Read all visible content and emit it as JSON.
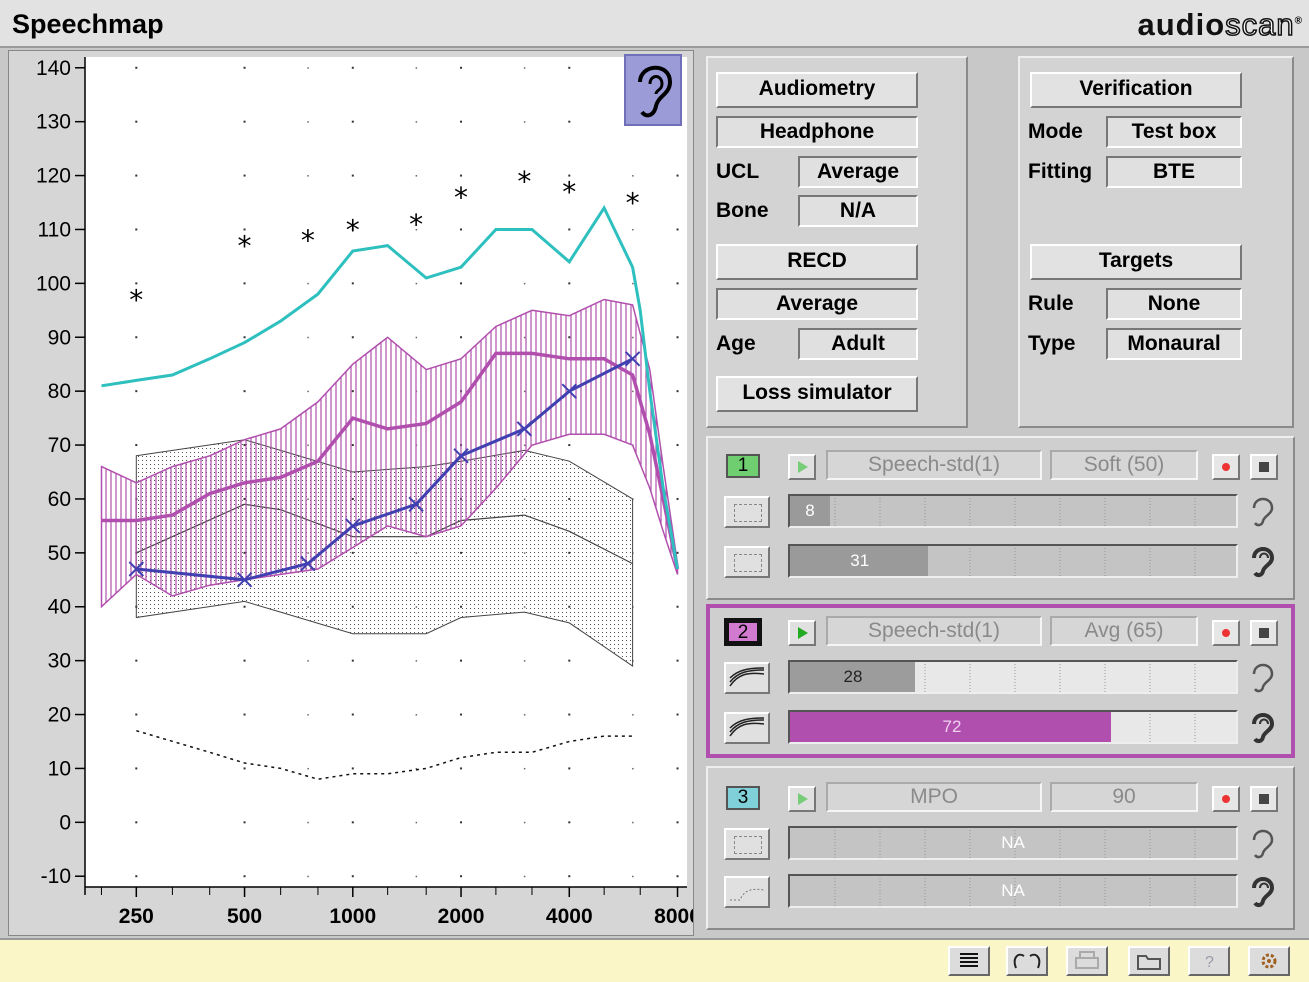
{
  "app_title": "Speechmap",
  "brand": {
    "part1": "audio",
    "part2": "scan"
  },
  "colors": {
    "accent_magenta": "#b14fae",
    "ucl_teal": "#2ebfbf",
    "aided_blue": "#4040b0",
    "status_bar": "#fbf6c8"
  },
  "chart_data": {
    "type": "line",
    "x_scale": "log",
    "xlim": [
      180,
      8500
    ],
    "ylim": [
      -12,
      142
    ],
    "x_ticks": [
      {
        "v": 250,
        "label": "250"
      },
      {
        "v": 500,
        "label": "500"
      },
      {
        "v": 1000,
        "label": "1000"
      },
      {
        "v": 2000,
        "label": "2000"
      },
      {
        "v": 4000,
        "label": "4000"
      },
      {
        "v": 8000,
        "label": "8000"
      }
    ],
    "y_ticks": [
      140,
      130,
      120,
      110,
      100,
      90,
      80,
      70,
      60,
      50,
      40,
      30,
      20,
      10,
      0,
      -10
    ],
    "grid": "dotted",
    "ucl_markers": {
      "x": [
        250,
        500,
        750,
        1000,
        1500,
        2000,
        3000,
        4000,
        6000
      ],
      "y": [
        97,
        107,
        108,
        110,
        111,
        116,
        119,
        117,
        115
      ]
    },
    "mpo_curve": {
      "x": [
        200,
        250,
        315,
        400,
        500,
        630,
        800,
        1000,
        1250,
        1600,
        2000,
        2500,
        3150,
        4000,
        5000,
        6000,
        6300,
        6700,
        7300,
        8000
      ],
      "y": [
        81,
        82,
        83,
        86,
        89,
        93,
        98,
        106,
        107,
        101,
        103,
        110,
        110,
        104,
        114,
        103,
        95,
        80,
        62,
        47
      ]
    },
    "speech_band_avg": {
      "upper": {
        "x": [
          200,
          250,
          315,
          400,
          500,
          630,
          800,
          1000,
          1250,
          1600,
          2000,
          2500,
          3150,
          4000,
          5000,
          6000,
          6700,
          7300,
          8000
        ],
        "y": [
          66,
          63,
          66,
          68,
          71,
          73,
          78,
          85,
          90,
          84,
          86,
          92,
          95,
          94,
          97,
          96,
          84,
          66,
          48
        ]
      },
      "lower": {
        "x": [
          200,
          250,
          315,
          400,
          500,
          630,
          800,
          1000,
          1250,
          1600,
          2000,
          2500,
          3150,
          4000,
          5000,
          6000,
          6700,
          7300,
          8000
        ],
        "y": [
          40,
          46,
          42,
          44,
          45,
          46,
          47,
          51,
          55,
          53,
          55,
          62,
          70,
          72,
          72,
          70,
          62,
          54,
          46
        ]
      },
      "mid": {
        "x": [
          200,
          250,
          315,
          400,
          500,
          630,
          800,
          1000,
          1250,
          1600,
          2000,
          2500,
          3150,
          4000,
          5000,
          6000,
          6700,
          7300,
          8000
        ],
        "y": [
          56,
          56,
          57,
          61,
          63,
          64,
          67,
          75,
          73,
          74,
          78,
          87,
          87,
          86,
          86,
          83,
          72,
          60,
          47
        ]
      }
    },
    "unaided_band": {
      "upper": {
        "x": [
          250,
          500,
          630,
          1000,
          1600,
          2000,
          3000,
          4000,
          6000
        ],
        "y": [
          68,
          71,
          69,
          65,
          66,
          67,
          69,
          67,
          60
        ]
      },
      "mid": {
        "x": [
          250,
          500,
          630,
          1000,
          1600,
          2000,
          3000,
          4000,
          6000
        ],
        "y": [
          50,
          59,
          58,
          53,
          53,
          56,
          57,
          54,
          48
        ]
      },
      "lower": {
        "x": [
          250,
          500,
          630,
          1000,
          1600,
          2000,
          3000,
          4000,
          6000
        ],
        "y": [
          38,
          41,
          39,
          35,
          35,
          38,
          39,
          37,
          29
        ]
      }
    },
    "aided_threshold": {
      "x": [
        250,
        500,
        750,
        1000,
        1500,
        2000,
        3000,
        4000,
        6000
      ],
      "y": [
        47,
        45,
        48,
        55,
        59,
        68,
        73,
        80,
        86
      ]
    },
    "hearing_threshold_dotted": {
      "x": [
        250,
        400,
        500,
        630,
        800,
        1000,
        1250,
        1600,
        2000,
        2500,
        3150,
        4000,
        5000,
        6000
      ],
      "y": [
        17,
        13,
        11,
        10,
        8,
        9,
        9,
        10,
        12,
        13,
        13,
        15,
        16,
        16
      ]
    }
  },
  "audiometry_panel": {
    "button": "Audiometry",
    "transducer": "Headphone",
    "ucl_label": "UCL",
    "ucl_value": "Average",
    "bone_label": "Bone",
    "bone_value": "N/A",
    "recd_button": "RECD",
    "recd_value": "Average",
    "age_label": "Age",
    "age_value": "Adult",
    "loss_sim_button": "Loss simulator"
  },
  "verification_panel": {
    "button": "Verification",
    "mode_label": "Mode",
    "mode_value": "Test box",
    "fitting_label": "Fitting",
    "fitting_value": "BTE",
    "targets_button": "Targets",
    "rule_label": "Rule",
    "rule_value": "None",
    "type_label": "Type",
    "type_value": "Monaural"
  },
  "signals": [
    {
      "num": "1",
      "stimulus": "Speech-std(1)",
      "level": "Soft (50)",
      "bar1_value": "8",
      "bar1_fraction": 0.09,
      "bar2_value": "31",
      "bar2_fraction": 0.31,
      "numcolor": "#6fce6f"
    },
    {
      "num": "2",
      "stimulus": "Speech-std(1)",
      "level": "Avg (65)",
      "bar1_value": "28",
      "bar1_fraction": 0.28,
      "bar2_value": "72",
      "bar2_fraction": 0.72,
      "numcolor": "#d27ad0"
    },
    {
      "num": "3",
      "stimulus": "MPO",
      "level": "90",
      "bar1_value": "NA",
      "bar2_value": "NA",
      "numcolor": "#7fd0d8"
    }
  ]
}
